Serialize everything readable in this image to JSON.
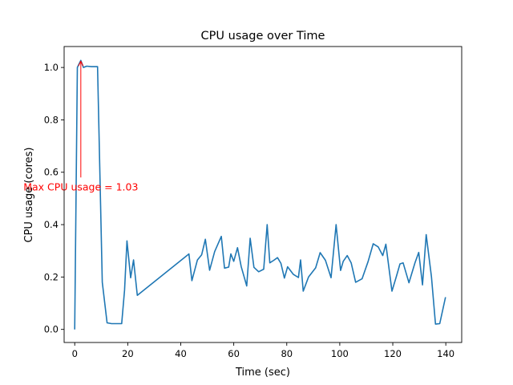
{
  "chart_data": {
    "type": "line",
    "title": "CPU usage over Time",
    "xlabel": "Time (sec)",
    "ylabel": "CPU usage (cores)",
    "xlim": [
      -4,
      146
    ],
    "ylim": [
      -0.05,
      1.08
    ],
    "xticks": [
      0,
      20,
      40,
      60,
      80,
      100,
      120,
      140
    ],
    "xtick_labels": [
      "0",
      "20",
      "40",
      "60",
      "80",
      "100",
      "120",
      "140"
    ],
    "yticks": [
      0.0,
      0.2,
      0.4,
      0.6,
      0.8,
      1.0
    ],
    "ytick_labels": [
      "0.0",
      "0.2",
      "0.4",
      "0.6",
      "0.8",
      "1.0"
    ],
    "grid": false,
    "series": [
      {
        "name": "CPU usage",
        "color": "#1f77b4",
        "x": [
          0,
          1,
          2.3,
          3.3,
          4.5,
          6.3,
          8.6,
          10.4,
          12.2,
          13.9,
          15.7,
          17.7,
          18.8,
          19.7,
          21.1,
          22.2,
          23.6,
          43.1,
          44.2,
          46.3,
          47.9,
          49.3,
          50.9,
          52.8,
          55.3,
          56.5,
          58.1,
          58.9,
          60,
          61.4,
          62.8,
          64.9,
          66.2,
          67.6,
          69.4,
          71.3,
          72.6,
          73.6,
          75.1,
          76.5,
          77.8,
          79.1,
          80.3,
          82.5,
          84.4,
          85.2,
          86.2,
          88.2,
          90.9,
          92.6,
          94.6,
          96.7,
          98.6,
          100.3,
          101.3,
          102.8,
          104.3,
          106,
          108.4,
          110.7,
          112.6,
          114.5,
          116.2,
          117.4,
          119.7,
          121.3,
          122.7,
          123.9,
          126.1,
          128.4,
          129.8,
          131.2,
          132.6,
          134.6,
          136.1,
          137.7,
          139.9
        ],
        "y": [
          0.0,
          1.0,
          1.027,
          1.0,
          1.005,
          1.003,
          1.003,
          0.18,
          0.025,
          0.022,
          0.022,
          0.022,
          0.15,
          0.338,
          0.197,
          0.265,
          0.13,
          0.288,
          0.186,
          0.265,
          0.285,
          0.344,
          0.226,
          0.297,
          0.355,
          0.234,
          0.238,
          0.288,
          0.26,
          0.312,
          0.24,
          0.166,
          0.348,
          0.237,
          0.22,
          0.23,
          0.4,
          0.254,
          0.264,
          0.274,
          0.252,
          0.196,
          0.239,
          0.21,
          0.198,
          0.265,
          0.146,
          0.2,
          0.235,
          0.293,
          0.264,
          0.197,
          0.4,
          0.225,
          0.26,
          0.282,
          0.254,
          0.18,
          0.193,
          0.26,
          0.327,
          0.315,
          0.282,
          0.325,
          0.146,
          0.2,
          0.25,
          0.254,
          0.178,
          0.255,
          0.294,
          0.17,
          0.362,
          0.2,
          0.02,
          0.022,
          0.123
        ]
      }
    ],
    "annotations": [
      {
        "text": "Max CPU usage = 1.03",
        "color": "#ff0000",
        "xy": [
          2.3,
          1.027
        ],
        "xytext": [
          2.3,
          0.58
        ],
        "text_anchor": "middle"
      }
    ]
  }
}
